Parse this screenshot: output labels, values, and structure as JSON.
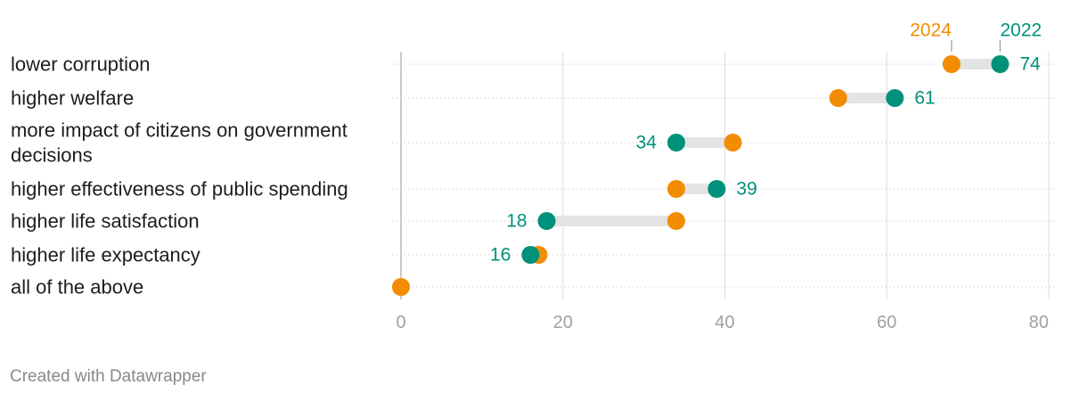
{
  "chart_data": {
    "type": "dot",
    "series": [
      {
        "name": "2024",
        "color": "#f28c00"
      },
      {
        "name": "2022",
        "color": "#00917a"
      }
    ],
    "categories": [
      {
        "label": [
          "lower corruption"
        ],
        "v2024": 68,
        "v2022": 74,
        "value_label": "74",
        "label_series": "2022"
      },
      {
        "label": [
          "higher welfare"
        ],
        "v2024": 54,
        "v2022": 61,
        "value_label": "61",
        "label_series": "2022"
      },
      {
        "label": [
          "more impact of citizens on government",
          "decisions"
        ],
        "v2024": 41,
        "v2022": 34,
        "value_label": "34",
        "label_series": "2022"
      },
      {
        "label": [
          "higher effectiveness of public spending"
        ],
        "v2024": 34,
        "v2022": 39,
        "value_label": "39",
        "label_series": "2022"
      },
      {
        "label": [
          "higher life satisfaction"
        ],
        "v2024": 34,
        "v2022": 18,
        "value_label": "18",
        "label_series": "2022"
      },
      {
        "label": [
          "higher life expectancy"
        ],
        "v2024": 17,
        "v2022": 16,
        "value_label": "16",
        "label_series": "2022"
      },
      {
        "label": [
          "all of the above"
        ],
        "v2024": 0,
        "v2022": null,
        "value_label": "",
        "label_series": ""
      }
    ],
    "xlim": [
      0,
      80
    ],
    "xticks": [
      0,
      20,
      40,
      60,
      80
    ],
    "grid": true,
    "legend": "top-right"
  },
  "credit": "Created with Datawrapper"
}
